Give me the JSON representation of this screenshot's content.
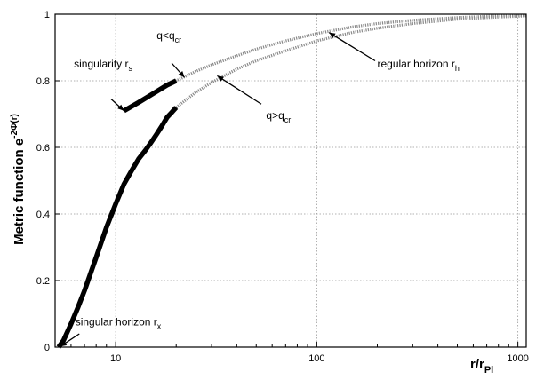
{
  "chart_data": {
    "type": "line",
    "xlabel": {
      "main": "r/r",
      "sub": "Pl"
    },
    "ylabel": {
      "main": "Metric function e",
      "sup": "-2Φ(r)"
    },
    "xscale": "log",
    "xlim": [
      5,
      1100
    ],
    "ylim": [
      0,
      1
    ],
    "grid": true,
    "x_ticks": [
      10,
      100,
      1000
    ],
    "x_tick_labels": [
      "10",
      "100",
      "1000"
    ],
    "y_ticks": [
      0,
      0.2,
      0.4,
      0.6,
      0.8,
      1
    ],
    "y_tick_labels": [
      "0",
      "0.2",
      "0.4",
      "0.6",
      "0.8",
      "1"
    ],
    "series": [
      {
        "style": "upper-thin",
        "points": [
          [
            11,
            0.71
          ],
          [
            13,
            0.735
          ],
          [
            15,
            0.758
          ],
          [
            18,
            0.787
          ],
          [
            20,
            0.8
          ],
          [
            25,
            0.828
          ],
          [
            30,
            0.848
          ],
          [
            40,
            0.875
          ],
          [
            50,
            0.895
          ],
          [
            70,
            0.92
          ],
          [
            100,
            0.942
          ],
          [
            150,
            0.962
          ],
          [
            200,
            0.972
          ],
          [
            300,
            0.982
          ],
          [
            500,
            0.99
          ],
          [
            700,
            0.994
          ],
          [
            1100,
            0.997
          ]
        ]
      },
      {
        "style": "upper-thick",
        "points": [
          [
            11,
            0.71
          ],
          [
            13,
            0.735
          ],
          [
            15,
            0.758
          ],
          [
            18,
            0.787
          ],
          [
            20,
            0.8
          ]
        ]
      },
      {
        "style": "lower-thin",
        "points": [
          [
            20,
            0.72
          ],
          [
            25,
            0.765
          ],
          [
            30,
            0.795
          ],
          [
            40,
            0.835
          ],
          [
            50,
            0.86
          ],
          [
            70,
            0.89
          ],
          [
            100,
            0.92
          ],
          [
            150,
            0.945
          ],
          [
            200,
            0.958
          ],
          [
            300,
            0.972
          ],
          [
            500,
            0.985
          ],
          [
            700,
            0.99
          ],
          [
            1100,
            0.995
          ]
        ]
      },
      {
        "style": "lower-thick",
        "points": [
          [
            5.2,
            0
          ],
          [
            5.5,
            0.02
          ],
          [
            6,
            0.07
          ],
          [
            6.5,
            0.12
          ],
          [
            7,
            0.17
          ],
          [
            8,
            0.27
          ],
          [
            9,
            0.36
          ],
          [
            10,
            0.43
          ],
          [
            11,
            0.49
          ],
          [
            12,
            0.53
          ],
          [
            13,
            0.565
          ],
          [
            14,
            0.59
          ],
          [
            15,
            0.615
          ],
          [
            16,
            0.64
          ],
          [
            17,
            0.665
          ],
          [
            18,
            0.69
          ],
          [
            19,
            0.705
          ],
          [
            20,
            0.72
          ]
        ]
      }
    ],
    "annotations": [
      {
        "id": "singularity",
        "text": "singularity r",
        "sub": "s",
        "x": 6.2,
        "y": 0.84,
        "arrow_from": [
          9.5,
          0.745
        ],
        "arrow_to": [
          11,
          0.71
        ]
      },
      {
        "id": "q-less",
        "text": "q<q",
        "sub": "cr",
        "x": 16,
        "y": 0.925,
        "arrow_from": [
          19,
          0.853
        ],
        "arrow_to": [
          22,
          0.81
        ]
      },
      {
        "id": "regular-horizon",
        "text": "regular horizon r",
        "sub": "h",
        "x": 200,
        "y": 0.84,
        "arrow_from": [
          195,
          0.86
        ],
        "arrow_to": [
          115,
          0.945
        ]
      },
      {
        "id": "q-greater",
        "text": "q>q",
        "sub": "cr",
        "x": 56,
        "y": 0.685,
        "arrow_from": [
          53,
          0.73
        ],
        "arrow_to": [
          32,
          0.815
        ]
      },
      {
        "id": "singular-horizon",
        "text": "singular horizon r",
        "sub": "x",
        "x": 6.3,
        "y": 0.065,
        "arrow_from": [
          6.6,
          0.04
        ],
        "arrow_to": [
          5.3,
          0.002
        ]
      }
    ]
  }
}
